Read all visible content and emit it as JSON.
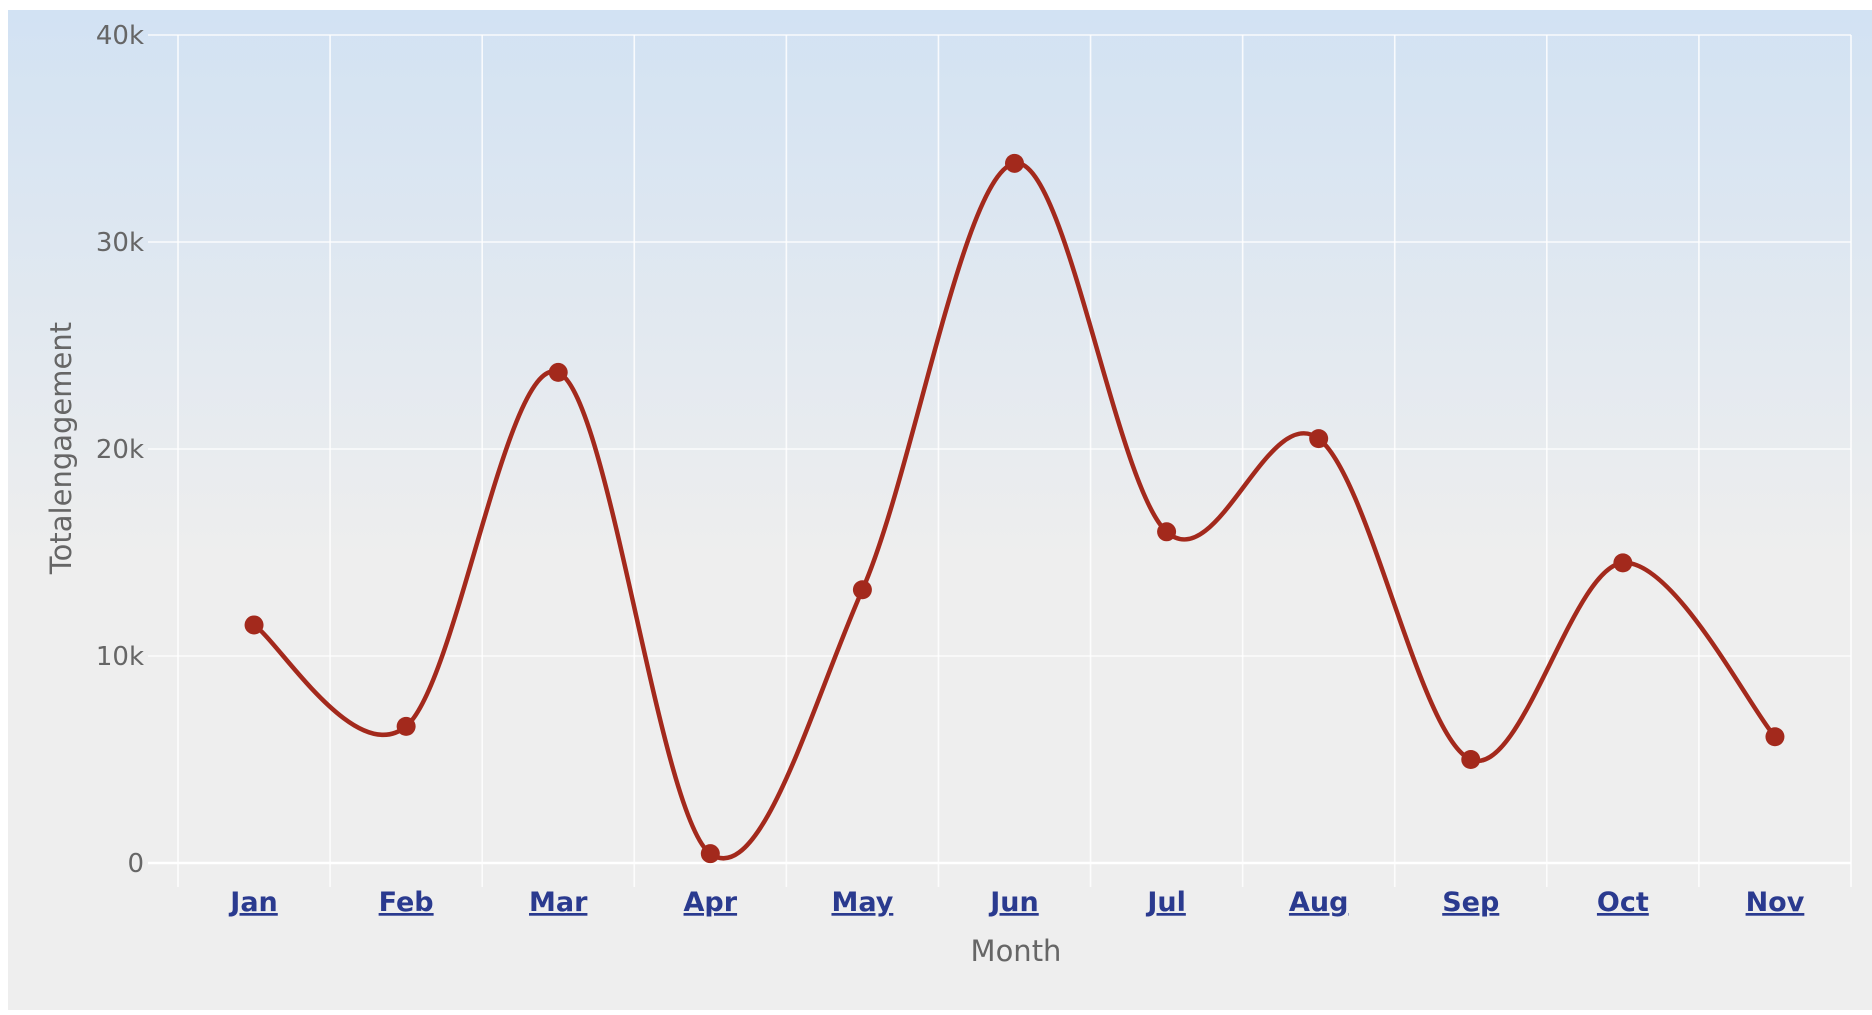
{
  "colors": {
    "background_top": "#d2e2f3",
    "background_bottom": "#eeeeee",
    "series": "#a3291c",
    "grid": "#ffffff",
    "tick_text": "#666666",
    "x_tick_link": "#2a3a8f"
  },
  "chart_data": {
    "type": "line",
    "smooth": true,
    "markers": true,
    "grid": true,
    "legend": "none",
    "xlabel": "Month",
    "ylabel": "Totalengagement",
    "categories": [
      "Jan",
      "Feb",
      "Mar",
      "Apr",
      "May",
      "Jun",
      "Jul",
      "Aug",
      "Sep",
      "Oct",
      "Nov"
    ],
    "yticks": [
      0,
      10000,
      20000,
      30000,
      40000
    ],
    "ytick_labels": [
      "0",
      "10k",
      "20k",
      "30k",
      "40k"
    ],
    "ylim": [
      0,
      40000
    ],
    "series": [
      {
        "values": [
          11500,
          6600,
          23700,
          450,
          13200,
          33800,
          16000,
          20500,
          5000,
          14500,
          6100
        ]
      }
    ]
  }
}
